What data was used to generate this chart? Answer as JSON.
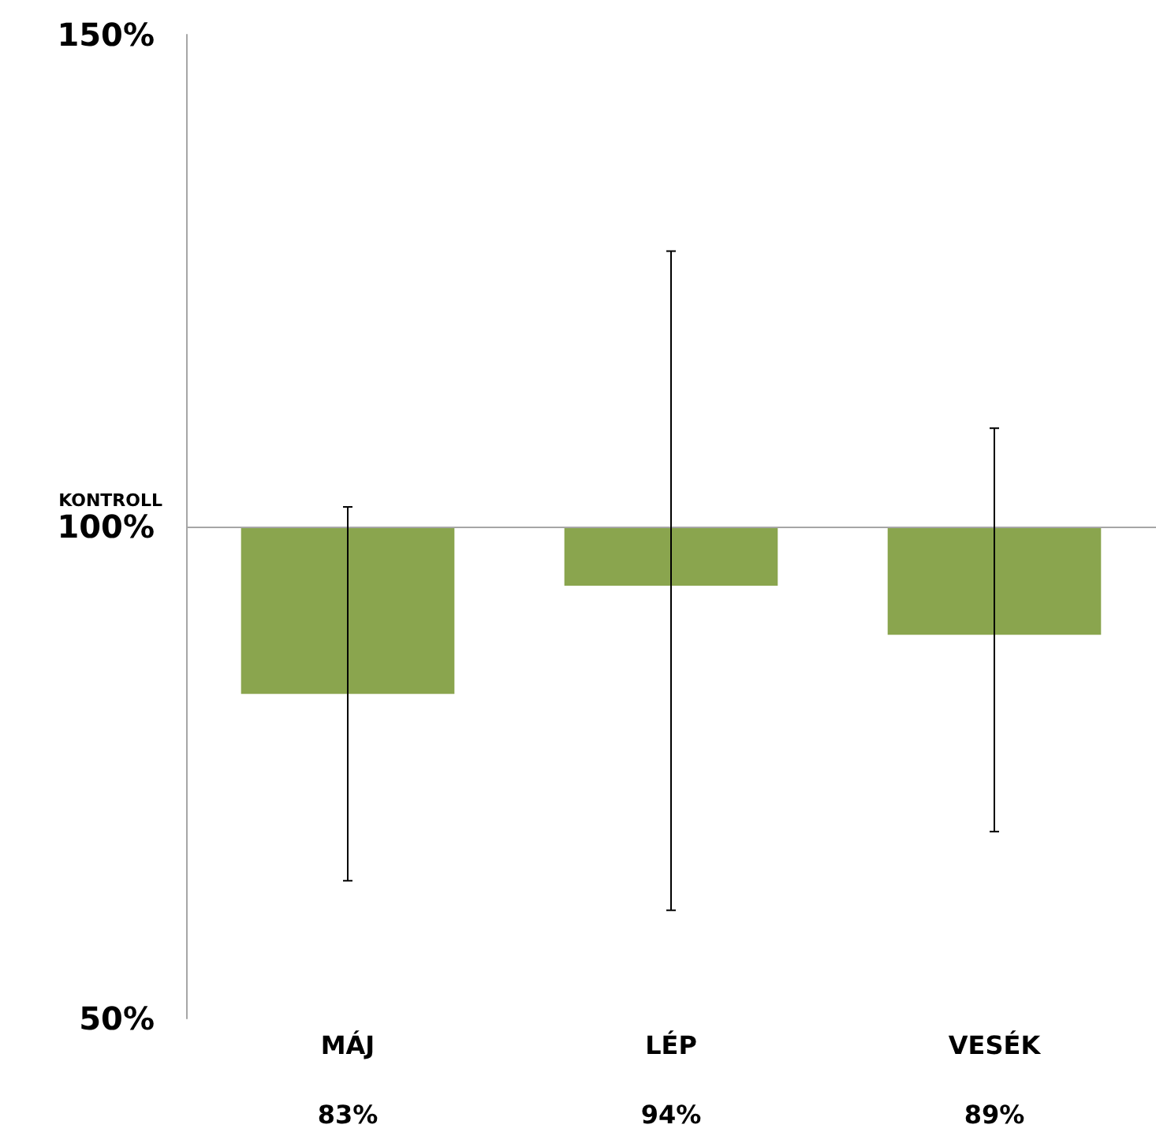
{
  "chart_data": {
    "type": "bar",
    "categories": [
      "MÁJ",
      "LÉP",
      "VESÉK"
    ],
    "base": [
      100,
      100,
      100
    ],
    "values": [
      -17,
      -6,
      -11
    ],
    "value_labels": [
      "83%",
      "94%",
      "89%"
    ],
    "color": "#8aa54e",
    "errors": [
      [
        64,
        102
      ],
      [
        61,
        128
      ],
      [
        69,
        110
      ]
    ],
    "ylim": [
      50,
      150
    ],
    "yticks": [
      {
        "value": 50,
        "label": "50%"
      },
      {
        "value": 100,
        "label": "100%"
      },
      {
        "value": 150,
        "label": "150%"
      }
    ],
    "ref_lines": [
      {
        "axis": "y",
        "value": 100,
        "label": "KONTROLL",
        "color": "#a6a6a6"
      }
    ]
  }
}
